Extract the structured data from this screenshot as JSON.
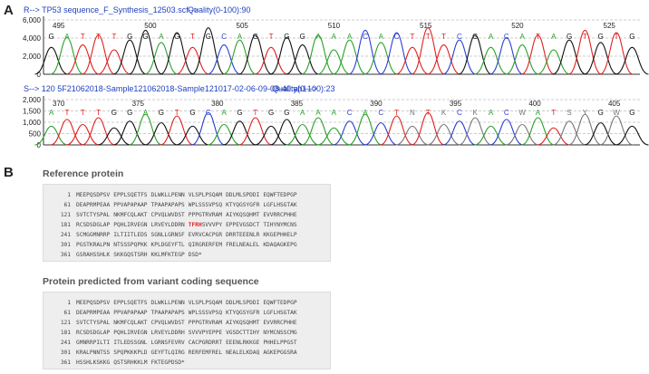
{
  "panel_a": {
    "letter": "A",
    "trace1": {
      "header": "R-->    TP53 sequence_F_Synthesis_12503.scf-->",
      "quality": "Quality(0-100):90",
      "y_ticks": [
        "6,000",
        "4,000",
        "2,000",
        "0"
      ],
      "positions": [
        "495",
        "500",
        "505",
        "510",
        "515",
        "520",
        "525"
      ],
      "bases": [
        "G",
        "A",
        "T",
        "T",
        "T",
        "G",
        "G",
        "A",
        "G",
        "T",
        "G",
        "C",
        "A",
        "G",
        "T",
        "G",
        "G",
        "A",
        "A",
        "A",
        "C",
        "A",
        "C",
        "T",
        "T",
        "T",
        "C",
        "G",
        "A",
        "C",
        "A",
        "T",
        "A",
        "G",
        "T",
        "G",
        "T",
        "G"
      ],
      "colors": {
        "A": "#2aa02a",
        "C": "#2a3fd0",
        "G": "#111111",
        "T": "#e02020"
      }
    },
    "trace2": {
      "header": "S-->    120 5F21062018-Sample121062018-Sample121017-02-06-09-08-40.ab1-->",
      "quality": "Quality(0-100):23",
      "y_ticks": [
        "2,000",
        "1,500",
        "1,000",
        "500",
        "0"
      ],
      "positions": [
        "370",
        "375",
        "380",
        "385",
        "390",
        "395",
        "400",
        "405"
      ],
      "bases": [
        "A",
        "T",
        "T",
        "T",
        "G",
        "G",
        "A",
        "G",
        "T",
        "G",
        "C",
        "A",
        "G",
        "T",
        "G",
        "G",
        "A",
        "A",
        "A",
        "C",
        "A",
        "C",
        "T",
        "N",
        "T",
        "K",
        "C",
        "K",
        "A",
        "C",
        "W",
        "A",
        "T",
        "S",
        "Y",
        "G",
        "W",
        "G"
      ],
      "colors": {
        "A": "#2aa02a",
        "C": "#2a3fd0",
        "G": "#111111",
        "T": "#e02020",
        "N": "#777777",
        "K": "#777777",
        "W": "#777777",
        "S": "#777777",
        "Y": "#777777"
      }
    }
  },
  "panel_b": {
    "letter": "B",
    "reference": {
      "title": "Reference protein",
      "lines": [
        {
          "num": "1",
          "blocks": [
            "MEEPQSDPSV",
            "EPPLSQETFS",
            "DLWKLLPENN",
            "VLSPLPSQAM",
            "DDLMLSPDDI",
            "EQWFTEDPGP"
          ]
        },
        {
          "num": "61",
          "blocks": [
            "DEAPRMPEAA",
            "PPVAPAPAAP",
            "TPAAPAPAPS",
            "WPLSSSVPSQ",
            "KTYQGSYGFR",
            "LGFLHSGTAK"
          ]
        },
        {
          "num": "121",
          "blocks": [
            "SVTCTYSPAL",
            "NKMFCQLAKT",
            "CPVQLWVDST",
            "PPPGTRVRAM",
            "AIYKQSQHMT",
            "EVVRRCPHHE"
          ]
        },
        {
          "num": "181",
          "blocks": [
            "RCSDSDGLAP",
            "PQHLIRVEGN",
            "LRVEYLDDRN",
            "TFRHSVVVPY",
            "EPPEVGSDCT",
            "TIHYNYMCNS"
          ]
        },
        {
          "num": "241",
          "blocks": [
            "SCMGGMNRRP",
            "ILTIITLEDS",
            "SGNLLGRNSF",
            "EVRVCACPGR",
            "DRRTEEENLR",
            "KKGEPHHELP"
          ]
        },
        {
          "num": "301",
          "blocks": [
            "PGSTKRALPN",
            "NTSSSPQPKK",
            "KPLDGEYFTL",
            "QIRGRERFEM",
            "FRELNEALEL",
            "KDAQAGKEPG"
          ]
        },
        {
          "num": "361",
          "blocks": [
            "GSRAHSSHLK",
            "SKKGQSTSRH",
            "KKLMFKTEGP",
            "DSD*"
          ]
        }
      ],
      "highlight": "TFRH"
    },
    "variant": {
      "title": "Protein predicted from variant coding sequence",
      "lines": [
        {
          "num": "1",
          "blocks": [
            "MEEPQSDPSV",
            "EPPLSQETFS",
            "DLWKLLPENN",
            "VLSPLPSQAM",
            "DDLMLSPDDI",
            "EQWFTEDPGP"
          ]
        },
        {
          "num": "61",
          "blocks": [
            "DEAPRMPEAA",
            "PPVAPAPAAP",
            "TPAAPAPAPS",
            "WPLSSSVPSQ",
            "KTYQGSYGFR",
            "LGFLHSGTAK"
          ]
        },
        {
          "num": "121",
          "blocks": [
            "SVTCTYSPAL",
            "NKMFCQLAKT",
            "CPVQLWVDST",
            "PPPGTRVRAM",
            "AIYKQSQHMT",
            "EVVRRCPHHE"
          ]
        },
        {
          "num": "181",
          "blocks": [
            "RCSDSDGLAP",
            "PQHLIRVEGN",
            "LRVEYLDDRH",
            "SVVVPYEPPE",
            "VGSDCTTIHY",
            "NYMCNSSCMG"
          ]
        },
        {
          "num": "241",
          "blocks": [
            "GMNRRPILTI",
            "ITLEDSSGNL",
            "LGRNSFEVRV",
            "CACPGRDRRT",
            "EEENLRKKGE",
            "PHHELPPGST"
          ]
        },
        {
          "num": "301",
          "blocks": [
            "KRALPNNTSS",
            "SPQPKKKPLD",
            "GEYFTLQIRG",
            "RERFEMFREL",
            "NEALELKDAQ",
            "AGKEPGGSRA"
          ]
        },
        {
          "num": "361",
          "blocks": [
            "HSSHLKSKKG",
            "QSTSRHKKLM",
            "FKTEGPDSD*"
          ]
        }
      ]
    }
  }
}
